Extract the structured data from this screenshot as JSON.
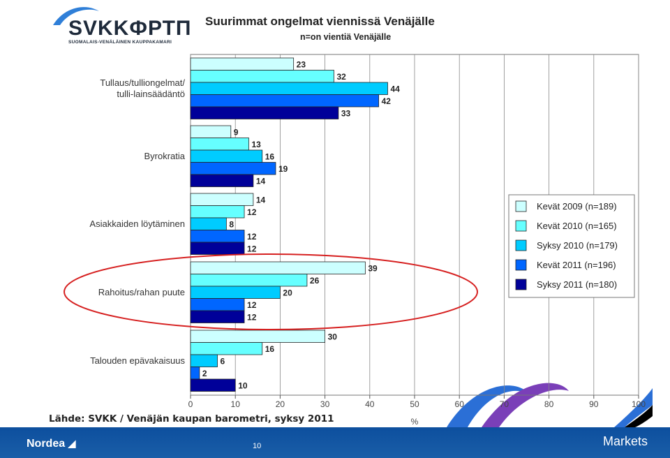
{
  "logo": {
    "text": "SVKKФРТП",
    "subtitle": "SUOMALAIS-VENÄLÄINEN KAUPPAKAMARI"
  },
  "title": "Suurimmat ongelmat viennissä Venäjälle",
  "subtitle": "n=on vientiä Venäjälle",
  "source": "Lähde: SVKK / Venäjän kaupan barometri, syksy 2011",
  "footer": {
    "brand": "Nordea",
    "page": "10",
    "section": "Markets"
  },
  "colors": {
    "series": [
      "#ccffff",
      "#66ffff",
      "#00ccff",
      "#0066ff",
      "#000099"
    ],
    "highlight": "#d61f1f",
    "footer": "#0d4f9e"
  },
  "chart_data": {
    "type": "bar",
    "orientation": "horizontal",
    "categories": [
      "Tullaus/tulliongelmat/\ntulli-lainsäädäntö",
      "Byrokratia",
      "Asiakkaiden löytäminen",
      "Rahoitus/rahan puute",
      "Talouden epävakaisuus"
    ],
    "series": [
      {
        "name": "Kevät 2009 (n=189)",
        "values": [
          23,
          9,
          14,
          39,
          30
        ]
      },
      {
        "name": "Kevät 2010 (n=165)",
        "values": [
          32,
          13,
          12,
          26,
          16
        ]
      },
      {
        "name": "Syksy 2010 (n=179)",
        "values": [
          44,
          16,
          8,
          20,
          6
        ]
      },
      {
        "name": "Kevät 2011 (n=196)",
        "values": [
          42,
          19,
          12,
          12,
          2
        ]
      },
      {
        "name": "Syksy 2011 (n=180)",
        "values": [
          33,
          14,
          12,
          12,
          10
        ]
      }
    ],
    "xlabel": "%",
    "xlim": [
      0,
      100
    ],
    "xticks": [
      0,
      10,
      20,
      30,
      40,
      50,
      60,
      70,
      80,
      90,
      100
    ],
    "grid": true,
    "legend_position": "right",
    "highlighted_category": "Rahoitus/rahan puute"
  }
}
